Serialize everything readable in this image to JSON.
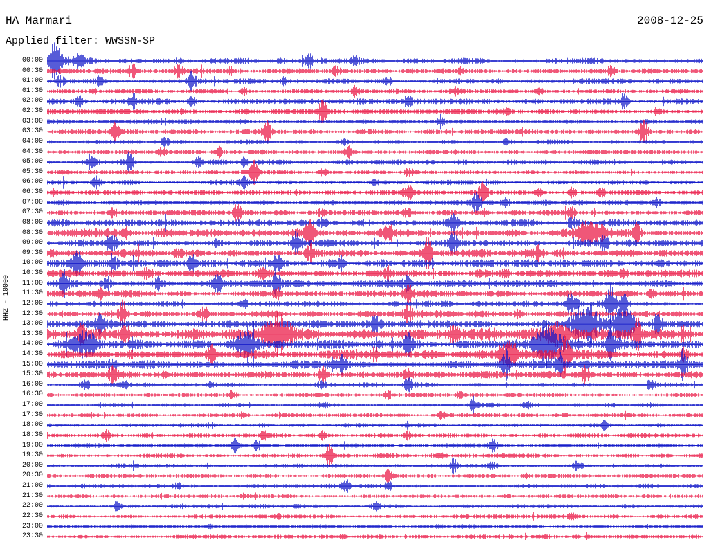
{
  "chart_data": {
    "type": "line",
    "title": "HA Marmari",
    "date": "2008-12-25",
    "filter_label": "Applied filter: WWSSN-SP",
    "ylabel": "HHZ - 10000",
    "row_interval_minutes": 30,
    "row_count": 48,
    "legend_position": "none",
    "grid": false,
    "colors": {
      "b": "#0f16c8",
      "r": "#e90f3f"
    },
    "rows": [
      {
        "t": "00:00",
        "c": "b",
        "a": 2.6,
        "e": [
          [
            0.012,
            8,
            0.014
          ],
          [
            0.05,
            3,
            0.01
          ],
          [
            0.2,
            1.5
          ],
          [
            0.4,
            2
          ],
          [
            0.47,
            1.5
          ]
        ]
      },
      {
        "t": "00:30",
        "c": "r",
        "a": 2.4,
        "e": [
          [
            0.13,
            2
          ],
          [
            0.2,
            2.5
          ],
          [
            0.28,
            2
          ],
          [
            0.44,
            2
          ],
          [
            0.63,
            1.8
          ],
          [
            0.86,
            2
          ]
        ]
      },
      {
        "t": "01:00",
        "c": "b",
        "a": 2.3,
        "e": [
          [
            0.02,
            2
          ],
          [
            0.08,
            2.5
          ],
          [
            0.22,
            3.5
          ],
          [
            0.36,
            2
          ],
          [
            0.52,
            2
          ]
        ]
      },
      {
        "t": "01:30",
        "c": "r",
        "a": 2.3,
        "e": [
          [
            0.07,
            2
          ],
          [
            0.3,
            2.2
          ],
          [
            0.47,
            2
          ],
          [
            0.62,
            1.8
          ],
          [
            0.75,
            2.5
          ]
        ]
      },
      {
        "t": "02:00",
        "c": "b",
        "a": 2.5,
        "e": [
          [
            0.05,
            2.5
          ],
          [
            0.13,
            3
          ],
          [
            0.22,
            2.5
          ],
          [
            0.55,
            1.8
          ],
          [
            0.88,
            3.5
          ]
        ]
      },
      {
        "t": "02:30",
        "c": "r",
        "a": 2.4,
        "e": [
          [
            0.08,
            1.8
          ],
          [
            0.42,
            4
          ],
          [
            0.7,
            1.5
          ],
          [
            0.93,
            3
          ]
        ]
      },
      {
        "t": "03:00",
        "c": "b",
        "a": 2.1,
        "e": [
          [
            0.3,
            1.5
          ],
          [
            0.6,
            1.5
          ]
        ]
      },
      {
        "t": "03:30",
        "c": "r",
        "a": 2.2,
        "e": [
          [
            0.105,
            4.5
          ],
          [
            0.335,
            4
          ],
          [
            0.91,
            4.5
          ]
        ]
      },
      {
        "t": "04:00",
        "c": "b",
        "a": 2.0,
        "e": [
          [
            0.18,
            1.5
          ],
          [
            0.45,
            1.8
          ],
          [
            0.7,
            1.5
          ]
        ]
      },
      {
        "t": "04:30",
        "c": "r",
        "a": 2.1,
        "e": [
          [
            0.175,
            2
          ],
          [
            0.26,
            4.5
          ],
          [
            0.46,
            2.5
          ]
        ]
      },
      {
        "t": "05:00",
        "c": "b",
        "a": 2.2,
        "e": [
          [
            0.065,
            3
          ],
          [
            0.125,
            4
          ],
          [
            0.23,
            4
          ],
          [
            0.3,
            2
          ]
        ]
      },
      {
        "t": "05:30",
        "c": "r",
        "a": 2.1,
        "e": [
          [
            0.315,
            4.5
          ],
          [
            0.42,
            2.5
          ],
          [
            0.55,
            1.5
          ]
        ]
      },
      {
        "t": "06:00",
        "c": "b",
        "a": 2.2,
        "e": [
          [
            0.075,
            4.5
          ],
          [
            0.3,
            2.5
          ],
          [
            0.5,
            1.5
          ]
        ]
      },
      {
        "t": "06:30",
        "c": "r",
        "a": 2.3,
        "e": [
          [
            0.55,
            2.5
          ],
          [
            0.665,
            4
          ],
          [
            0.75,
            2
          ],
          [
            0.8,
            4
          ],
          [
            0.845,
            3
          ]
        ]
      },
      {
        "t": "07:00",
        "c": "b",
        "a": 2.3,
        "e": [
          [
            0.655,
            4
          ],
          [
            0.7,
            2.5
          ],
          [
            0.93,
            2.5
          ]
        ]
      },
      {
        "t": "07:30",
        "c": "r",
        "a": 2.5,
        "e": [
          [
            0.1,
            2
          ],
          [
            0.29,
            3.5
          ],
          [
            0.42,
            2
          ],
          [
            0.55,
            2
          ],
          [
            0.8,
            2.5
          ]
        ]
      },
      {
        "t": "08:00",
        "c": "b",
        "a": 3.2,
        "e": [
          [
            0.42,
            2.5
          ],
          [
            0.62,
            2
          ],
          [
            0.8,
            1.8
          ]
        ]
      },
      {
        "t": "08:30",
        "c": "r",
        "a": 3.6,
        "e": [
          [
            0.12,
            2
          ],
          [
            0.4,
            2.5
          ],
          [
            0.52,
            2
          ],
          [
            0.83,
            4.5,
            0.018
          ],
          [
            0.9,
            2.5
          ]
        ]
      },
      {
        "t": "09:00",
        "c": "b",
        "a": 3.6,
        "e": [
          [
            0.1,
            2
          ],
          [
            0.26,
            2
          ],
          [
            0.38,
            2.5
          ],
          [
            0.5,
            2
          ],
          [
            0.62,
            2.5
          ],
          [
            0.85,
            2
          ]
        ]
      },
      {
        "t": "09:30",
        "c": "r",
        "a": 3.8,
        "e": [
          [
            0.2,
            2
          ],
          [
            0.4,
            2
          ],
          [
            0.58,
            3.5
          ],
          [
            0.75,
            2
          ]
        ]
      },
      {
        "t": "10:00",
        "c": "b",
        "a": 3.6,
        "e": [
          [
            0.045,
            2.5
          ],
          [
            0.1,
            3
          ],
          [
            0.22,
            2
          ],
          [
            0.35,
            2.5
          ],
          [
            0.45,
            2
          ]
        ]
      },
      {
        "t": "10:30",
        "c": "r",
        "a": 3.4,
        "e": [
          [
            0.15,
            2
          ],
          [
            0.33,
            2
          ],
          [
            0.52,
            2
          ],
          [
            0.7,
            2
          ],
          [
            0.88,
            2
          ]
        ]
      },
      {
        "t": "11:00",
        "c": "b",
        "a": 3.4,
        "e": [
          [
            0.025,
            3
          ],
          [
            0.09,
            4
          ],
          [
            0.17,
            2.5
          ],
          [
            0.26,
            2.5
          ],
          [
            0.35,
            3
          ],
          [
            0.55,
            2
          ]
        ]
      },
      {
        "t": "11:30",
        "c": "r",
        "a": 3.0,
        "e": [
          [
            0.08,
            2
          ],
          [
            0.35,
            2.5
          ],
          [
            0.55,
            2
          ],
          [
            0.92,
            2
          ]
        ]
      },
      {
        "t": "12:00",
        "c": "b",
        "a": 2.6,
        "e": [
          [
            0.3,
            1.8
          ],
          [
            0.8,
            5,
            0.01
          ],
          [
            0.86,
            6,
            0.008
          ],
          [
            0.88,
            4
          ]
        ]
      },
      {
        "t": "12:30",
        "c": "r",
        "a": 3.0,
        "e": [
          [
            0.115,
            4.5
          ],
          [
            0.24,
            2.5
          ],
          [
            0.55,
            2
          ],
          [
            0.72,
            2
          ]
        ]
      },
      {
        "t": "13:00",
        "c": "b",
        "a": 3.8,
        "e": [
          [
            0.08,
            2
          ],
          [
            0.5,
            2
          ],
          [
            0.82,
            4,
            0.02
          ],
          [
            0.88,
            5,
            0.015
          ],
          [
            0.93,
            3
          ]
        ]
      },
      {
        "t": "13:30",
        "c": "r",
        "a": 5.0,
        "e": [
          [
            0.05,
            2
          ],
          [
            0.12,
            2.5
          ],
          [
            0.35,
            3,
            0.02
          ],
          [
            0.62,
            2
          ],
          [
            0.78,
            3,
            0.02
          ],
          [
            0.9,
            2.5
          ],
          [
            0.97,
            2.5
          ]
        ]
      },
      {
        "t": "14:00",
        "c": "b",
        "a": 4.4,
        "e": [
          [
            0.06,
            3,
            0.015
          ],
          [
            0.3,
            3,
            0.02
          ],
          [
            0.55,
            2
          ],
          [
            0.76,
            4,
            0.02
          ],
          [
            0.86,
            3
          ]
        ]
      },
      {
        "t": "14:30",
        "c": "r",
        "a": 4.2,
        "e": [
          [
            0.25,
            2
          ],
          [
            0.5,
            2
          ],
          [
            0.7,
            4,
            0.015
          ],
          [
            0.79,
            3
          ],
          [
            0.97,
            3
          ]
        ]
      },
      {
        "t": "15:00",
        "c": "b",
        "a": 3.8,
        "e": [
          [
            0.1,
            2
          ],
          [
            0.45,
            2
          ],
          [
            0.7,
            4.5
          ],
          [
            0.78,
            3
          ],
          [
            0.97,
            3
          ]
        ]
      },
      {
        "t": "15:30",
        "c": "r",
        "a": 3.2,
        "e": [
          [
            0.1,
            2
          ],
          [
            0.42,
            4.5
          ],
          [
            0.55,
            2.5
          ],
          [
            0.82,
            3
          ]
        ]
      },
      {
        "t": "16:00",
        "c": "b",
        "a": 2.0,
        "e": [
          [
            0.06,
            2.5
          ],
          [
            0.12,
            2
          ],
          [
            0.25,
            2
          ],
          [
            0.42,
            2
          ],
          [
            0.55,
            3.5
          ],
          [
            0.92,
            2.5
          ]
        ]
      },
      {
        "t": "16:30",
        "c": "r",
        "a": 1.9,
        "e": [
          [
            0.28,
            1.8
          ],
          [
            0.52,
            3
          ],
          [
            0.63,
            2
          ]
        ]
      },
      {
        "t": "17:00",
        "c": "b",
        "a": 1.9,
        "e": [
          [
            0.42,
            2
          ],
          [
            0.65,
            3.5
          ],
          [
            0.73,
            2
          ]
        ]
      },
      {
        "t": "17:30",
        "c": "r",
        "a": 1.9,
        "e": [
          [
            0.3,
            2.5
          ],
          [
            0.6,
            1.8
          ]
        ]
      },
      {
        "t": "18:00",
        "c": "b",
        "a": 1.8,
        "e": [
          [
            0.25,
            1.5
          ],
          [
            0.55,
            1.8
          ],
          [
            0.85,
            1.5
          ]
        ]
      },
      {
        "t": "18:30",
        "c": "r",
        "a": 1.9,
        "e": [
          [
            0.09,
            2.5
          ],
          [
            0.33,
            3.5
          ],
          [
            0.42,
            2
          ],
          [
            0.55,
            2
          ]
        ]
      },
      {
        "t": "19:00",
        "c": "b",
        "a": 1.9,
        "e": [
          [
            0.285,
            4
          ],
          [
            0.32,
            3
          ],
          [
            0.68,
            2.5
          ]
        ]
      },
      {
        "t": "19:30",
        "c": "r",
        "a": 1.9,
        "e": [
          [
            0.43,
            4.5
          ],
          [
            0.6,
            1.8
          ]
        ]
      },
      {
        "t": "20:00",
        "c": "b",
        "a": 1.9,
        "e": [
          [
            0.62,
            4
          ],
          [
            0.68,
            2.5
          ],
          [
            0.81,
            3
          ]
        ]
      },
      {
        "t": "20:30",
        "c": "r",
        "a": 1.9,
        "e": [
          [
            0.52,
            3
          ],
          [
            0.73,
            2.5
          ]
        ]
      },
      {
        "t": "21:00",
        "c": "b",
        "a": 1.9,
        "e": [
          [
            0.2,
            1.8
          ],
          [
            0.455,
            4
          ],
          [
            0.52,
            2.5
          ]
        ]
      },
      {
        "t": "21:30",
        "c": "r",
        "a": 1.8,
        "e": [
          [
            0.3,
            1.5
          ],
          [
            0.7,
            1.5
          ]
        ]
      },
      {
        "t": "22:00",
        "c": "b",
        "a": 1.9,
        "e": [
          [
            0.105,
            4.5
          ],
          [
            0.5,
            1.5
          ]
        ]
      },
      {
        "t": "22:30",
        "c": "r",
        "a": 1.8,
        "e": [
          [
            0.35,
            1.5
          ],
          [
            0.8,
            1.5
          ]
        ]
      },
      {
        "t": "23:00",
        "c": "b",
        "a": 1.8,
        "e": [
          [
            0.25,
            1.5
          ],
          [
            0.6,
            1.5
          ]
        ]
      },
      {
        "t": "23:30",
        "c": "r",
        "a": 1.8,
        "e": [
          [
            0.45,
            1.5
          ]
        ]
      }
    ]
  }
}
